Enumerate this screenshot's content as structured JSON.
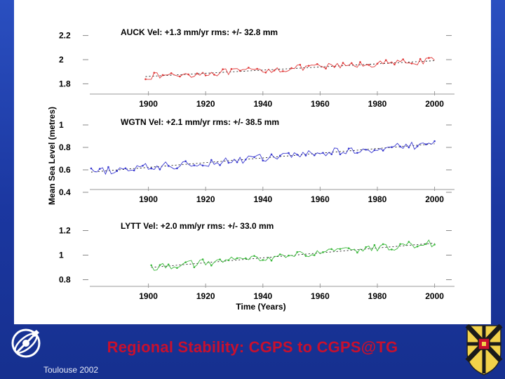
{
  "slide": {
    "title": "Regional Stability: CGPS to CGPS@TG",
    "footer": "Toulouse 2002",
    "colors": {
      "background": "#1d3aa6",
      "title": "#c8102e",
      "panel": "#ffffff"
    }
  },
  "chart_data": [
    {
      "type": "line",
      "station": "AUCK",
      "title": "AUCK  Vel:  +1.3 mm/yr    rms: +/- 32.8 mm",
      "color": "#e03a3a",
      "ylabel": "Mean Sea Level (metres)",
      "ylim": [
        1.75,
        2.25
      ],
      "yticks": [
        {
          "value": 2.2,
          "label": "2.2"
        },
        {
          "value": 2.0,
          "label": "2"
        },
        {
          "value": 1.8,
          "label": "1.8"
        }
      ],
      "xlim": [
        1880,
        2005
      ],
      "xticks": [
        1900,
        1920,
        1940,
        1960,
        1980,
        2000
      ],
      "xtick_labels": [
        "1900",
        "1920",
        "1940",
        "1960",
        "1980",
        "2000"
      ],
      "start_year": 1899,
      "end_year": 2000,
      "start_value": 1.86,
      "trend_per_year": 0.0013,
      "noise": 0.028
    },
    {
      "type": "line",
      "station": "WGTN",
      "title": "WGTN  Vel:  +2.1 mm/yr    rms:  +/- 38.5 mm",
      "color": "#3a3ad0",
      "ylim": [
        0.35,
        1.05
      ],
      "yticks": [
        {
          "value": 1.0,
          "label": "1"
        },
        {
          "value": 0.8,
          "label": "0.8"
        },
        {
          "value": 0.6,
          "label": "0.6"
        },
        {
          "value": 0.4,
          "label": "0.4"
        }
      ],
      "xlim": [
        1880,
        2005
      ],
      "xticks": [
        1900,
        1920,
        1940,
        1960,
        1980,
        2000
      ],
      "xtick_labels": [
        "1900",
        "1920",
        "1940",
        "1960",
        "1980",
        "2000"
      ],
      "start_year": 1880,
      "end_year": 2000,
      "start_value": 0.58,
      "trend_per_year": 0.0021,
      "noise": 0.036
    },
    {
      "type": "line",
      "station": "LYTT",
      "title": "LYTT  Vel:  +2.0 mm/yr    rms: +/- 33.0 mm",
      "color": "#3ab83a",
      "ylim": [
        0.78,
        1.26
      ],
      "yticks": [
        {
          "value": 1.2,
          "label": "1.2"
        },
        {
          "value": 1.0,
          "label": "1"
        },
        {
          "value": 0.8,
          "label": "0.8"
        }
      ],
      "xlim": [
        1880,
        2005
      ],
      "xticks": [
        1900,
        1920,
        1940,
        1960,
        1980,
        2000
      ],
      "xtick_labels": [
        "1900",
        "1920",
        "1940",
        "1960",
        "1980",
        "2000"
      ],
      "xlabel": "Time (Years)",
      "start_year": 1901,
      "end_year": 2000,
      "start_value": 0.9,
      "trend_per_year": 0.002,
      "noise": 0.03
    }
  ]
}
